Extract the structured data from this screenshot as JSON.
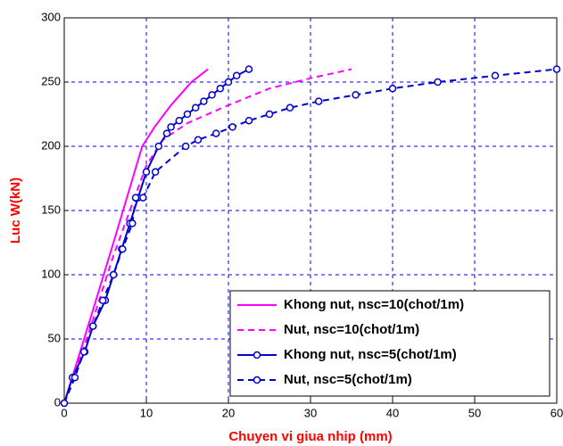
{
  "chart_data": {
    "type": "line",
    "xlabel": "Chuyen vi giua nhip (mm)",
    "ylabel": "Luc W(kN)",
    "xlim": [
      0,
      60
    ],
    "xticks": [
      0,
      10,
      20,
      30,
      40,
      50,
      60
    ],
    "ylim": [
      0,
      300
    ],
    "yticks": [
      0,
      50,
      100,
      150,
      200,
      250,
      300
    ],
    "grid": true,
    "legend": "lower right",
    "series": [
      {
        "name": "Khong nut, nsc=10(chot/1m)",
        "color": "#ff00ff",
        "dash": false,
        "marker": false,
        "x": [
          0,
          3,
          6,
          9.5,
          11,
          13,
          15.5,
          17.5
        ],
        "values": [
          0,
          62,
          125,
          200,
          215,
          232,
          250,
          260
        ]
      },
      {
        "name": "Nut, nsc=10(chot/1m)",
        "color": "#ff00ff",
        "dash": true,
        "marker": false,
        "x": [
          0,
          3,
          6,
          10,
          12,
          15,
          20,
          25,
          30,
          35
        ],
        "values": [
          0,
          55,
          115,
          185,
          205,
          218,
          232,
          245,
          253,
          260
        ]
      },
      {
        "name": "Khong nut, nsc=5(chot/1m)",
        "color": "#0000cc",
        "dash": false,
        "marker": true,
        "x": [
          0,
          1,
          2.5,
          3.5,
          5,
          6,
          7,
          8,
          9,
          10,
          11.5,
          12.5,
          13,
          14,
          15,
          16,
          17,
          18,
          19,
          20,
          21,
          22.5
        ],
        "values": [
          0,
          20,
          40,
          60,
          80,
          100,
          120,
          140,
          160,
          180,
          200,
          210,
          215,
          220,
          225,
          230,
          235,
          240,
          245,
          250,
          255,
          260
        ]
      },
      {
        "name": "Nut, nsc=5(chot/1m)",
        "color": "#0000cc",
        "dash": true,
        "marker": true,
        "x": [
          0,
          1.3,
          2.4,
          3.5,
          4.7,
          6,
          7.1,
          8.3,
          8.7,
          9.6,
          11.1,
          14.8,
          16.3,
          18.5,
          20.5,
          22.5,
          25,
          27.5,
          31,
          35.5,
          40,
          45.5,
          52.5,
          60
        ],
        "values": [
          0,
          20,
          40,
          60,
          80,
          100,
          120,
          140,
          160,
          160,
          180,
          200,
          205,
          210,
          215,
          220,
          225,
          230,
          235,
          240,
          245,
          250,
          255,
          260
        ]
      }
    ]
  }
}
